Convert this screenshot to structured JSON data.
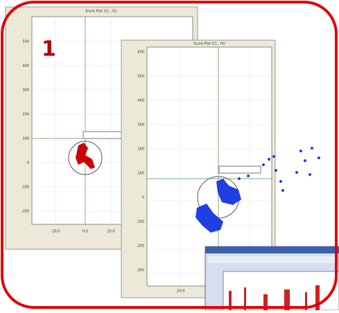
{
  "badge": "1",
  "windows": [
    {
      "title": "Score Plot (t1 , t2)",
      "y_ticks": [
        "500",
        "400",
        "300",
        "200",
        "100",
        "0",
        "-100",
        "-200"
      ],
      "x_ticks": [
        "-20.0",
        "0.0",
        "20.0"
      ]
    },
    {
      "title": "Score Plot (t1 , t4)",
      "y_ticks": [
        "600",
        "500",
        "400",
        "300",
        "200",
        "100",
        "0",
        "-100",
        "-200",
        "-300"
      ],
      "x_ticks": [
        "-20.0"
      ]
    }
  ]
}
